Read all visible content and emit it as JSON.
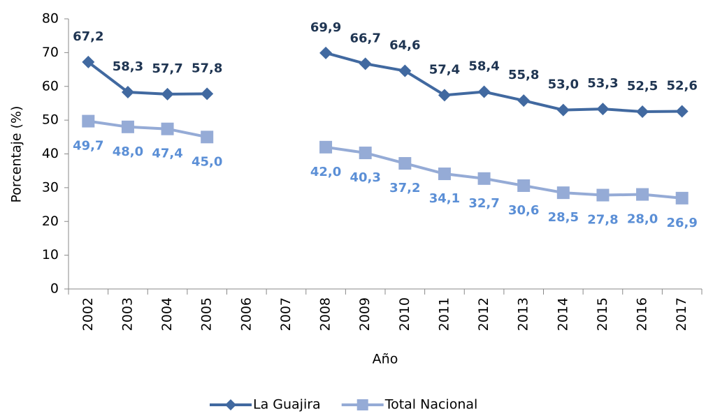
{
  "chart_data": {
    "type": "line",
    "x_label": "Año",
    "y_label": "Porcentaje (%)",
    "categories": [
      "2002",
      "2003",
      "2004",
      "2005",
      "2006",
      "2007",
      "2008",
      "2009",
      "2010",
      "2011",
      "2012",
      "2013",
      "2014",
      "2015",
      "2016",
      "2017"
    ],
    "series": [
      {
        "name": "La Guajira",
        "color": "#4169a0",
        "label_color": "#1f3552",
        "values": [
          67.2,
          58.3,
          57.7,
          57.8,
          null,
          null,
          69.9,
          66.7,
          64.6,
          57.4,
          58.4,
          55.8,
          53.0,
          53.3,
          52.5,
          52.6
        ],
        "value_labels": [
          "67,2",
          "58,3",
          "57,7",
          "57,8",
          null,
          null,
          "69,9",
          "66,7",
          "64,6",
          "57,4",
          "58,4",
          "55,8",
          "53,0",
          "53,3",
          "52,5",
          "52,6"
        ]
      },
      {
        "name": "Total Nacional",
        "color": "#95abd6",
        "label_color": "#5b8fd6",
        "values": [
          49.7,
          48.0,
          47.4,
          45.0,
          null,
          null,
          42.0,
          40.3,
          37.2,
          34.1,
          32.7,
          30.6,
          28.5,
          27.8,
          28.0,
          26.9
        ],
        "value_labels": [
          "49,7",
          "48,0",
          "47,4",
          "45,0",
          null,
          null,
          "42,0",
          "40,3",
          "37,2",
          "34,1",
          "32,7",
          "30,6",
          "28,5",
          "27,8",
          "28,0",
          "26,9"
        ]
      }
    ],
    "ylim": [
      0,
      80
    ],
    "yticks": [
      0,
      10,
      20,
      30,
      40,
      50,
      60,
      70,
      80
    ],
    "legend": "bottom"
  }
}
